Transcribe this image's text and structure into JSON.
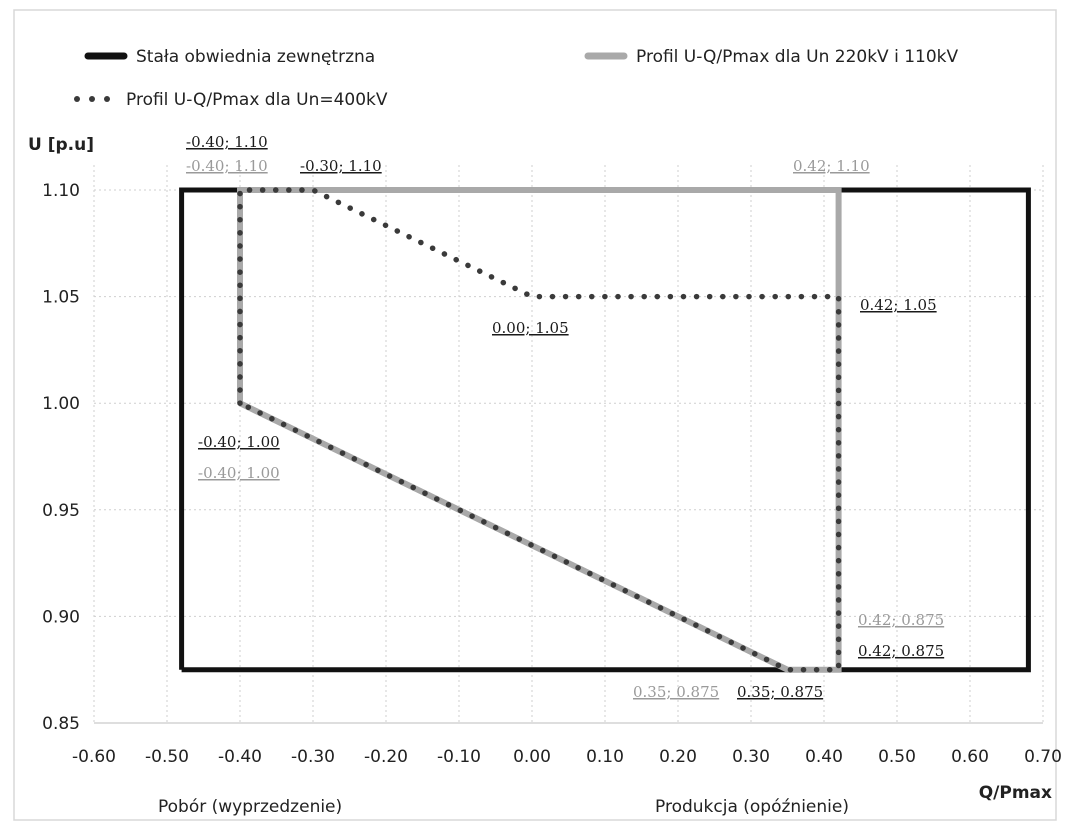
{
  "chart_data": {
    "type": "line",
    "xlabel": "Q/Pmax",
    "ylabel": "U [p.u]",
    "xlim": [
      -0.6,
      0.7
    ],
    "ylim": [
      0.85,
      1.1
    ],
    "x_ticks": [
      "-0.60",
      "-0.50",
      "-0.40",
      "-0.30",
      "-0.20",
      "-0.10",
      "0.00",
      "0.10",
      "0.20",
      "0.30",
      "0.40",
      "0.50",
      "0.60",
      "0.70"
    ],
    "y_ticks": [
      "0.85",
      "0.90",
      "0.95",
      "1.00",
      "1.05",
      "1.10"
    ],
    "grid": true,
    "legend_position": "top",
    "series": [
      {
        "name": "Stała obwiednia zewnętrzna",
        "style": "solid-thick",
        "color": "#111111",
        "points": [
          [
            -0.48,
            0.875
          ],
          [
            -0.48,
            1.1
          ],
          [
            0.68,
            1.1
          ],
          [
            0.68,
            0.875
          ],
          [
            -0.48,
            0.875
          ]
        ]
      },
      {
        "name": "Profil U-Q/Pmax dla Un 220kV i 110kV",
        "style": "solid-gray",
        "color": "#a9a9a9",
        "points": [
          [
            -0.4,
            1.0
          ],
          [
            -0.4,
            1.1
          ],
          [
            0.42,
            1.1
          ],
          [
            0.42,
            0.875
          ],
          [
            0.35,
            0.875
          ],
          [
            -0.4,
            1.0
          ]
        ]
      },
      {
        "name": "Profil U-Q/Pmax dla Un=400kV",
        "style": "dotted",
        "color": "#3a3a3a",
        "points": [
          [
            -0.4,
            1.0
          ],
          [
            -0.4,
            1.1
          ],
          [
            -0.3,
            1.1
          ],
          [
            0.0,
            1.05
          ],
          [
            0.42,
            1.05
          ],
          [
            0.42,
            0.875
          ],
          [
            0.35,
            0.875
          ],
          [
            -0.4,
            1.0
          ]
        ]
      }
    ],
    "annotations": [
      {
        "text": "-0.40; 1.10",
        "color": "black"
      },
      {
        "text": "-0.40; 1.10",
        "color": "gray"
      },
      {
        "text": "-0.30; 1.10",
        "color": "black"
      },
      {
        "text": "0.42; 1.10",
        "color": "gray"
      },
      {
        "text": "0.00; 1.05",
        "color": "black"
      },
      {
        "text": "0.42; 1.05",
        "color": "black"
      },
      {
        "text": "-0.40; 1.00",
        "color": "black"
      },
      {
        "text": "-0.40; 1.00",
        "color": "gray"
      },
      {
        "text": "0.42; 0.875",
        "color": "gray"
      },
      {
        "text": "0.42; 0.875",
        "color": "black"
      },
      {
        "text": "0.35; 0.875",
        "color": "gray"
      },
      {
        "text": "0.35; 0.875",
        "color": "black"
      }
    ],
    "notes": {
      "left": "Pobór (wyprzedzenie)",
      "right": "Produkcja (opóźnienie)"
    }
  }
}
